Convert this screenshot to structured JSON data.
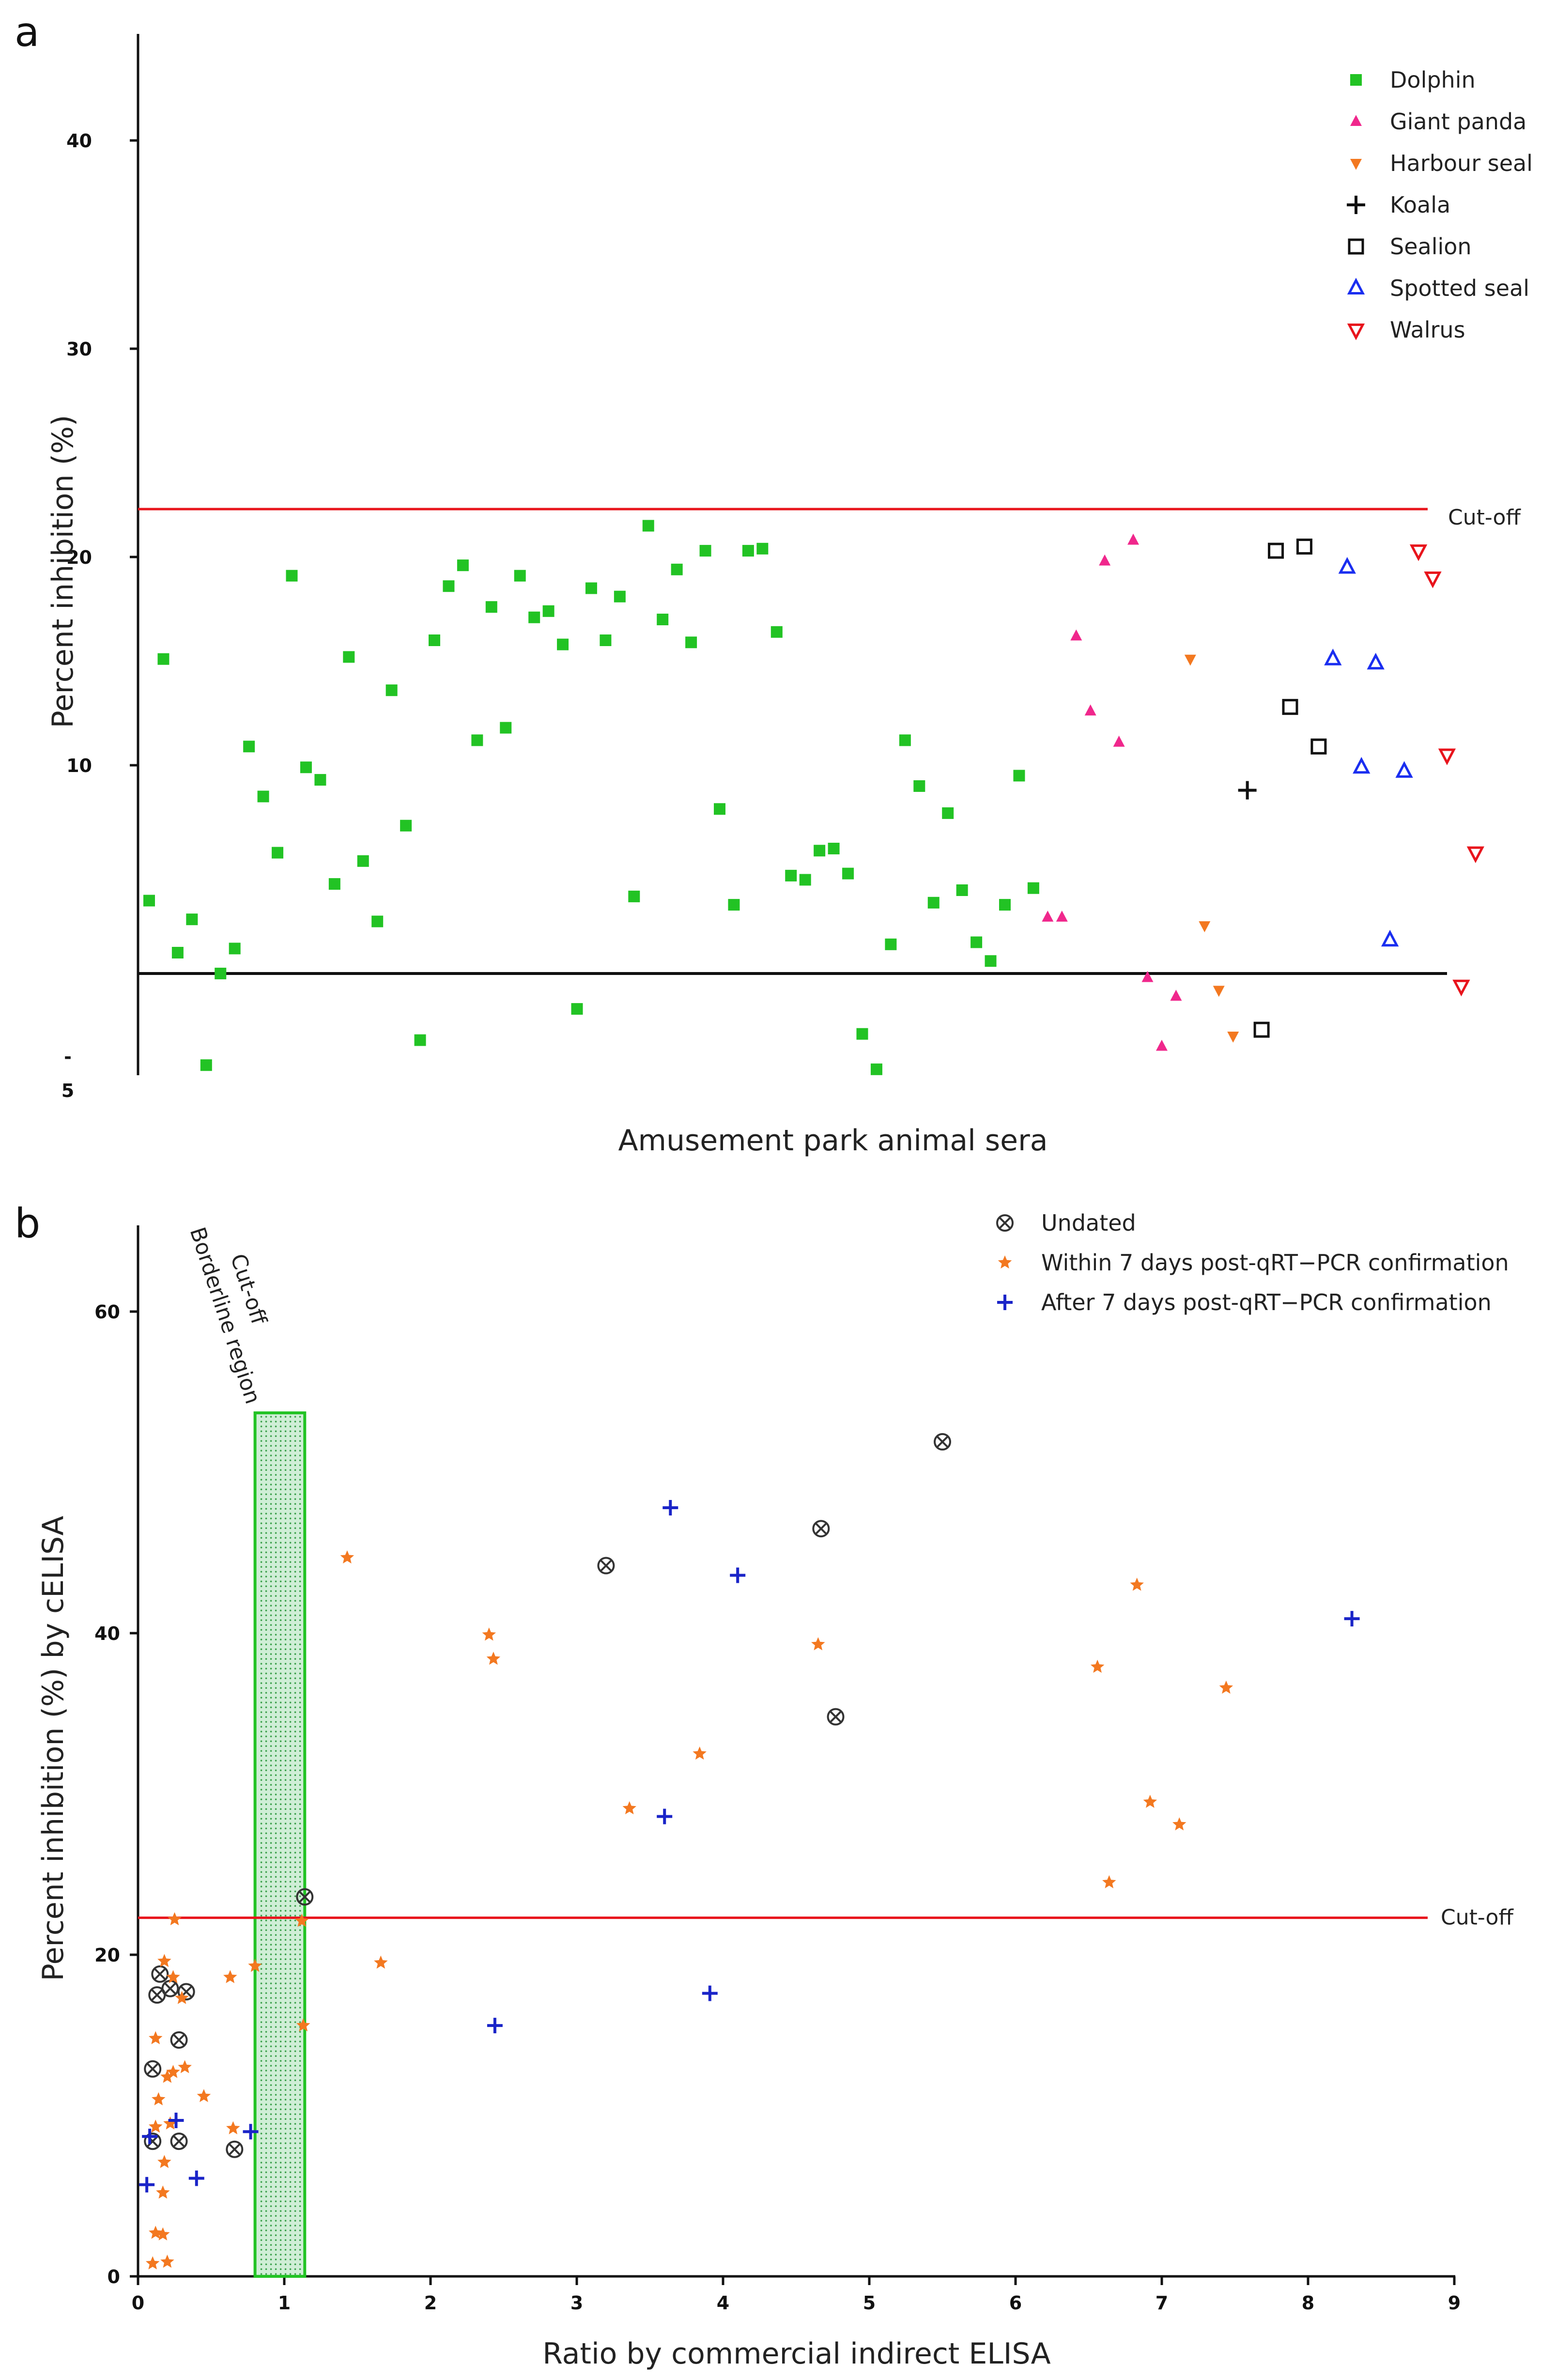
{
  "chart_data": [
    {
      "panel": "a",
      "type": "scatter",
      "xlabel": "Amusement park animal sera",
      "ylabel": "Percent inhibition (%)",
      "ylim": [
        -5,
        45
      ],
      "y_ticks": [
        {
          "value": 40,
          "label": "40"
        },
        {
          "value": 30,
          "label": "30"
        },
        {
          "value": 20,
          "label": "20"
        },
        {
          "value": 10,
          "label": "10"
        },
        {
          "value": 0,
          "label": ""
        },
        {
          "value": -5,
          "label": "-\n5"
        }
      ],
      "neg_tick_dash": "-",
      "neg_tick_num": "5",
      "cutoff": {
        "value": 22.3,
        "label": "Cut-off",
        "color": "#e8141c"
      },
      "legend": {
        "position": "top-right"
      },
      "series": [
        {
          "name": "Dolphin",
          "marker": "square",
          "color": "#22c324",
          "points": [
            [
              1,
              3.5
            ],
            [
              2,
              15.1
            ],
            [
              3,
              1.0
            ],
            [
              4,
              2.6
            ],
            [
              5,
              -4.4
            ],
            [
              6,
              0.0
            ],
            [
              7,
              1.2
            ],
            [
              8,
              10.9
            ],
            [
              9,
              8.5
            ],
            [
              10,
              5.8
            ],
            [
              11,
              19.1
            ],
            [
              12,
              9.9
            ],
            [
              13,
              9.3
            ],
            [
              14,
              4.3
            ],
            [
              15,
              15.2
            ],
            [
              16,
              5.4
            ],
            [
              17,
              2.5
            ],
            [
              18,
              13.6
            ],
            [
              19,
              7.1
            ],
            [
              20,
              -3.2
            ],
            [
              21,
              16.0
            ],
            [
              22,
              18.6
            ],
            [
              23,
              19.6
            ],
            [
              24,
              11.2
            ],
            [
              25,
              17.6
            ],
            [
              26,
              11.8
            ],
            [
              27,
              19.1
            ],
            [
              28,
              17.1
            ],
            [
              29,
              17.4
            ],
            [
              30,
              15.8
            ],
            [
              31,
              -1.7
            ],
            [
              32,
              18.5
            ],
            [
              33,
              16.0
            ],
            [
              34,
              18.1
            ],
            [
              35,
              3.7
            ],
            [
              36,
              21.5
            ],
            [
              37,
              17.0
            ],
            [
              38,
              19.4
            ],
            [
              39,
              15.9
            ],
            [
              40,
              20.3
            ],
            [
              41,
              7.9
            ],
            [
              42,
              3.3
            ],
            [
              43,
              20.3
            ],
            [
              44,
              20.4
            ],
            [
              45,
              16.4
            ],
            [
              46,
              4.7
            ],
            [
              47,
              4.5
            ],
            [
              48,
              5.9
            ],
            [
              49,
              6.0
            ],
            [
              50,
              4.8
            ],
            [
              51,
              -2.9
            ],
            [
              52,
              -4.6
            ],
            [
              53,
              1.4
            ],
            [
              54,
              11.2
            ],
            [
              55,
              9.0
            ],
            [
              56,
              3.4
            ],
            [
              57,
              7.7
            ],
            [
              58,
              4.0
            ],
            [
              59,
              1.5
            ],
            [
              60,
              0.6
            ],
            [
              61,
              3.3
            ],
            [
              62,
              9.5
            ],
            [
              63,
              4.1
            ]
          ]
        },
        {
          "name": "Giant panda",
          "marker": "triangle-up",
          "color": "#f0278c",
          "points": [
            [
              64,
              2.7
            ],
            [
              65,
              2.7
            ],
            [
              66,
              16.2
            ],
            [
              67,
              12.6
            ],
            [
              68,
              19.8
            ],
            [
              69,
              11.1
            ],
            [
              70,
              20.8
            ],
            [
              71,
              -0.2
            ],
            [
              72,
              -3.5
            ],
            [
              73,
              -1.1
            ]
          ]
        },
        {
          "name": "Harbour seal",
          "marker": "triangle-down",
          "color": "#f37820",
          "points": [
            [
              74,
              15.1
            ],
            [
              75,
              2.3
            ],
            [
              76,
              -0.8
            ],
            [
              77,
              -3.0
            ]
          ]
        },
        {
          "name": "Koala",
          "marker": "plus",
          "color": "#111111",
          "points": [
            [
              78,
              8.8
            ]
          ]
        },
        {
          "name": "Sealion",
          "marker": "square-open",
          "color": "#111111",
          "points": [
            [
              79,
              -2.7
            ],
            [
              80,
              20.3
            ],
            [
              81,
              12.8
            ],
            [
              82,
              20.5
            ],
            [
              83,
              10.9
            ]
          ]
        },
        {
          "name": "Spotted seal",
          "marker": "triangle-up-open",
          "color": "#1a2ef0",
          "points": [
            [
              84,
              15.1
            ],
            [
              85,
              19.5
            ],
            [
              86,
              9.9
            ],
            [
              87,
              14.9
            ],
            [
              88,
              1.6
            ],
            [
              89,
              9.7
            ]
          ]
        },
        {
          "name": "Walrus",
          "marker": "triangle-down-open",
          "color": "#e8141c",
          "points": [
            [
              90,
              20.3
            ],
            [
              91,
              19.0
            ],
            [
              92,
              10.5
            ],
            [
              93,
              -0.6
            ],
            [
              94,
              5.8
            ]
          ]
        }
      ]
    },
    {
      "panel": "b",
      "type": "scatter",
      "xlabel": "Ratio by commercial indirect ELISA",
      "ylabel": "Percent inhibition (%) by cELISA",
      "xlim": [
        0,
        9
      ],
      "ylim": [
        0,
        65
      ],
      "x_ticks": [
        "0",
        "1",
        "2",
        "3",
        "4",
        "5",
        "6",
        "7",
        "8",
        "9"
      ],
      "y_ticks": [
        "0",
        "20",
        "40",
        "60"
      ],
      "cutoff": {
        "value": 22.3,
        "label": "Cut-off",
        "color": "#e8141c"
      },
      "borderline_region": {
        "x_range": [
          0.8,
          1.14
        ],
        "y_range": [
          0,
          53.7
        ],
        "label_1": "Borderline region",
        "label_2": "Cut-off",
        "color": "#22c324"
      },
      "legend": {
        "position": "top-right"
      },
      "series": [
        {
          "name": "Undated",
          "marker": "circled-x",
          "color": "#333333",
          "points": [
            [
              0.1,
              12.9
            ],
            [
              0.13,
              17.5
            ],
            [
              0.15,
              18.8
            ],
            [
              0.22,
              17.9
            ],
            [
              0.28,
              8.4
            ],
            [
              0.28,
              14.7
            ],
            [
              0.33,
              17.7
            ],
            [
              0.1,
              8.4
            ],
            [
              0.66,
              7.9
            ],
            [
              1.14,
              23.6
            ],
            [
              3.2,
              44.2
            ],
            [
              4.67,
              46.5
            ],
            [
              4.77,
              34.8
            ],
            [
              5.5,
              51.9
            ]
          ]
        },
        {
          "name": "Within 7 days post-qRT−PCR confirmation",
          "marker": "star",
          "color": "#f37820",
          "points": [
            [
              0.1,
              0.8
            ],
            [
              0.2,
              0.9
            ],
            [
              0.12,
              2.7
            ],
            [
              0.17,
              2.6
            ],
            [
              0.17,
              5.2
            ],
            [
              0.18,
              7.1
            ],
            [
              0.12,
              9.3
            ],
            [
              0.22,
              9.5
            ],
            [
              0.14,
              11.0
            ],
            [
              0.2,
              12.4
            ],
            [
              0.24,
              12.7
            ],
            [
              0.32,
              13.0
            ],
            [
              0.12,
              14.8
            ],
            [
              0.24,
              18.6
            ],
            [
              0.18,
              19.6
            ],
            [
              0.3,
              17.3
            ],
            [
              0.25,
              22.2
            ],
            [
              0.45,
              11.2
            ],
            [
              0.65,
              9.2
            ],
            [
              0.63,
              18.6
            ],
            [
              0.8,
              19.3
            ],
            [
              1.13,
              15.6
            ],
            [
              1.12,
              22.1
            ],
            [
              1.43,
              44.7
            ],
            [
              1.66,
              19.5
            ],
            [
              2.4,
              39.9
            ],
            [
              2.43,
              38.4
            ],
            [
              3.36,
              29.1
            ],
            [
              3.84,
              32.5
            ],
            [
              4.65,
              39.3
            ],
            [
              6.56,
              37.9
            ],
            [
              6.64,
              24.5
            ],
            [
              6.83,
              43.0
            ],
            [
              6.92,
              29.5
            ],
            [
              7.12,
              28.1
            ],
            [
              7.44,
              36.6
            ]
          ]
        },
        {
          "name": "After 7 days post-qRT−PCR confirmation",
          "marker": "plus",
          "color": "#1a24c8",
          "points": [
            [
              0.06,
              5.7
            ],
            [
              0.08,
              8.7
            ],
            [
              0.26,
              9.7
            ],
            [
              0.4,
              6.1
            ],
            [
              0.77,
              9.0
            ],
            [
              2.44,
              15.6
            ],
            [
              3.6,
              28.6
            ],
            [
              3.64,
              47.8
            ],
            [
              3.91,
              17.6
            ],
            [
              4.1,
              43.6
            ],
            [
              8.3,
              40.9
            ]
          ]
        }
      ]
    }
  ]
}
